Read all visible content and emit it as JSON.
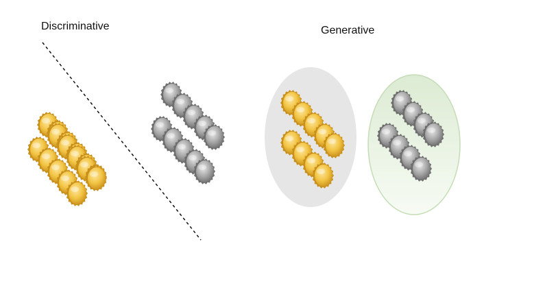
{
  "labels": {
    "discriminative": "Discriminative",
    "generative": "Generative"
  },
  "colors": {
    "gold_light": "#fde7a0",
    "gold": "#f2c443",
    "gold_dark": "#c9901c",
    "silver_light": "#e8e8e8",
    "silver": "#a8a8a8",
    "silver_dark": "#6e6e6e",
    "ellipse_gray": "#e6e6e6",
    "ellipse_green_top": "#dcebd3",
    "ellipse_green_bottom": "#f7fbf4",
    "ellipse_green_stroke": "#c5dcb6",
    "divider": "#111111"
  },
  "icons": {
    "coin": "gear-coin-icon"
  },
  "groups": [
    {
      "id": "disc-gold",
      "color": "gold",
      "count": 16
    },
    {
      "id": "disc-silver",
      "color": "silver",
      "count": 10
    },
    {
      "id": "gen-gold",
      "color": "gold",
      "count": 8
    },
    {
      "id": "gen-silver",
      "color": "silver",
      "count": 8
    }
  ]
}
